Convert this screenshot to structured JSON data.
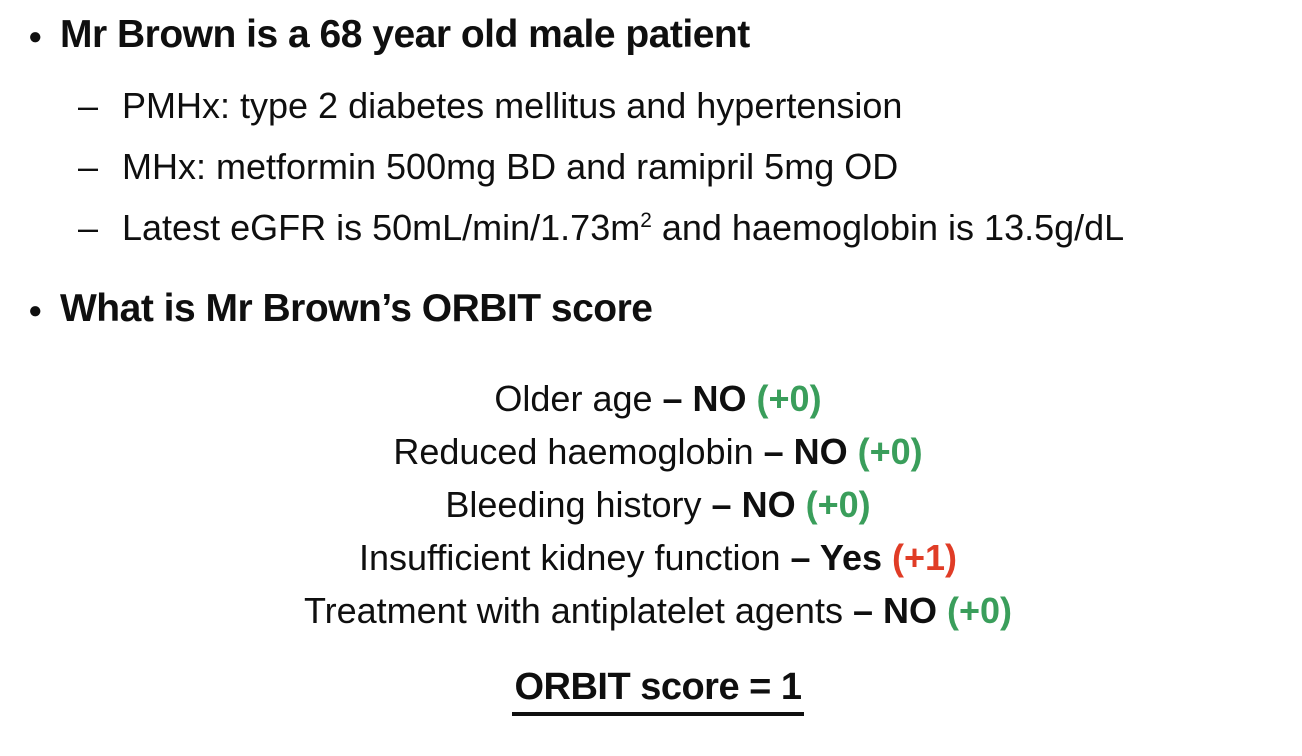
{
  "colors": {
    "text": "#0f0f0f",
    "green": "#3a9e5b",
    "red": "#e03c26"
  },
  "markers": {
    "bullet": "●",
    "dash": "–",
    "separator": " – "
  },
  "patient": {
    "title": "Mr Brown is a 68 year old male patient",
    "details": [
      {
        "text": "PMHx: type 2 diabetes mellitus and hypertension"
      },
      {
        "text": "MHx: metformin 500mg BD and ramipril 5mg OD"
      },
      {
        "text_before_sup": "Latest eGFR is 50mL/min/1.73m",
        "sup": "2",
        "text_after_sup": " and haemoglobin is 13.5g/dL"
      }
    ]
  },
  "question": "What is Mr Brown’s ORBIT score",
  "orbit_criteria": [
    {
      "label": "Older age",
      "answer": "NO",
      "points": "(+0)",
      "points_color": "green"
    },
    {
      "label": "Reduced haemoglobin",
      "answer": "NO",
      "points": "(+0)",
      "points_color": "green"
    },
    {
      "label": "Bleeding history",
      "answer": "NO",
      "points": "(+0)",
      "points_color": "green"
    },
    {
      "label": "Insufficient kidney function",
      "answer": "Yes",
      "points": "(+1)",
      "points_color": "red"
    },
    {
      "label": "Treatment with antiplatelet agents",
      "answer": "NO",
      "points": "(+0)",
      "points_color": "green"
    }
  ],
  "result": "ORBIT score = 1"
}
